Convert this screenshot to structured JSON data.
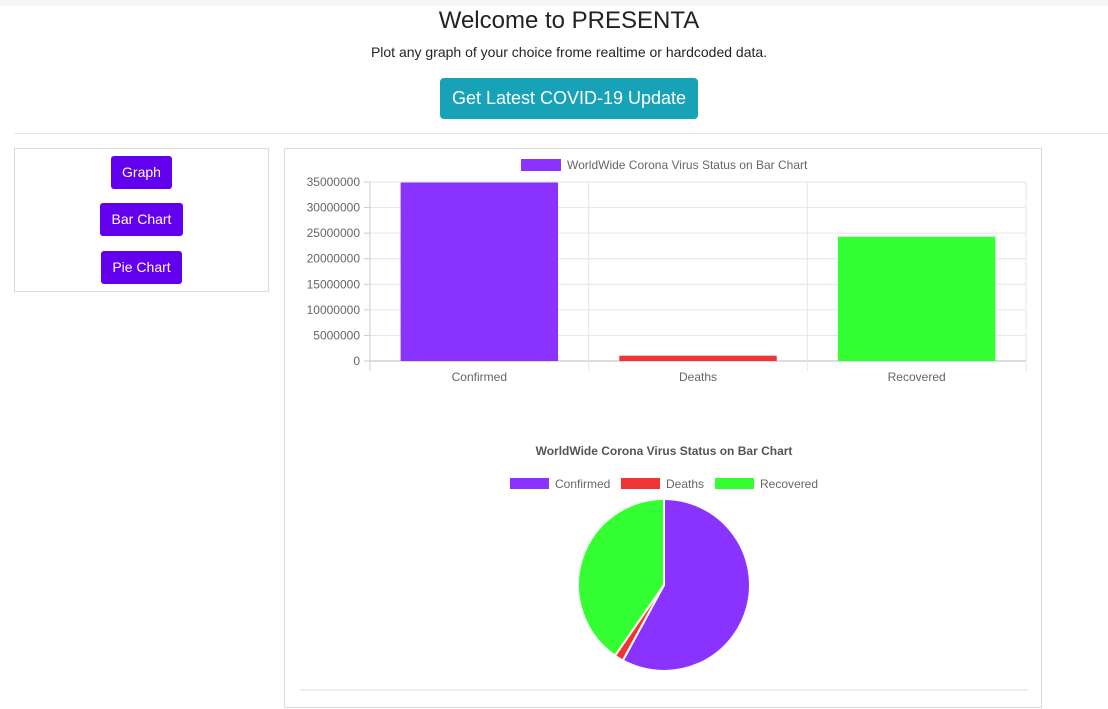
{
  "header": {
    "title": "Welcome to PRESENTA",
    "subtitle": "Plot any graph of your choice frome realtime or hardcoded data.",
    "cta_label": "Get Latest COVID-19 Update"
  },
  "sidebar": {
    "items": [
      {
        "label": "Graph"
      },
      {
        "label": "Bar Chart"
      },
      {
        "label": "Pie Chart"
      }
    ]
  },
  "colors": {
    "accent": "#6200ee",
    "cta": "#17a2b8",
    "confirmed": "#8a33ff",
    "deaths": "#f03434",
    "recovered": "#33ff33"
  },
  "chart_data": [
    {
      "type": "bar",
      "legend": [
        "WorldWide Corona Virus Status on Bar Chart"
      ],
      "legend_position": "top",
      "categories": [
        "Confirmed",
        "Deaths",
        "Recovered"
      ],
      "values": [
        34900000,
        1030000,
        24300000
      ],
      "ylim": [
        0,
        35000000
      ],
      "yticks": [
        "35000000",
        "30000000",
        "25000000",
        "20000000",
        "15000000",
        "10000000",
        "5000000",
        "0"
      ],
      "grid": true
    },
    {
      "type": "pie",
      "title": "WorldWide Corona Virus Status on Bar Chart",
      "legend": [
        "Confirmed",
        "Deaths",
        "Recovered"
      ],
      "legend_position": "top",
      "categories": [
        "Confirmed",
        "Deaths",
        "Recovered"
      ],
      "values": [
        34900000,
        1030000,
        24300000
      ]
    }
  ]
}
